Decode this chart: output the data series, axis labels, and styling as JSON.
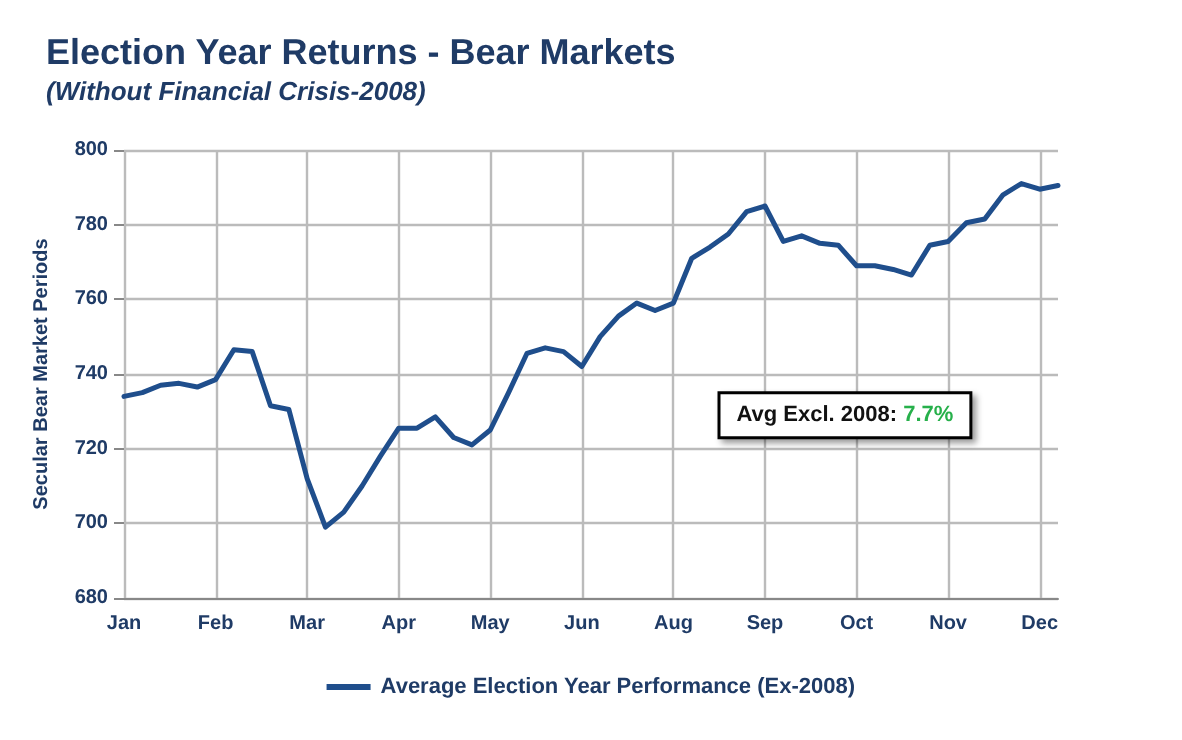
{
  "chart_data": {
    "type": "line",
    "title": "Election Year Returns - Bear Markets",
    "subtitle": "(Without Financial Crisis-2008)",
    "ylabel": "Secular Bear Market Periods",
    "categories": [
      "Jan",
      null,
      null,
      null,
      null,
      "Feb",
      null,
      null,
      null,
      null,
      "Mar",
      null,
      null,
      null,
      null,
      "Apr",
      null,
      null,
      null,
      null,
      "May",
      null,
      null,
      null,
      null,
      "Jun",
      null,
      null,
      null,
      null,
      "Aug",
      null,
      null,
      null,
      null,
      "Sep",
      null,
      null,
      null,
      null,
      "Oct",
      null,
      null,
      null,
      null,
      "Nov",
      null,
      null,
      null,
      null,
      "Dec",
      null
    ],
    "series": [
      {
        "name": "Average Election Year Performance (Ex-2008)",
        "color": "#1f4e8c",
        "values": [
          734,
          735,
          737,
          737.5,
          736.5,
          738.5,
          746.5,
          746,
          731.5,
          730.5,
          712,
          699,
          703,
          710,
          718,
          725.5,
          725.5,
          728.5,
          723,
          721,
          725,
          735,
          745.5,
          747,
          746,
          742,
          750,
          755.5,
          759,
          757,
          759,
          771,
          774,
          777.5,
          783.5,
          785,
          775.5,
          777,
          775,
          774.5,
          769,
          769,
          768,
          766.5,
          774.5,
          775.5,
          780.5,
          781.5,
          788,
          791,
          789.5,
          790.5
        ]
      }
    ],
    "ylim": [
      680,
      800
    ],
    "yticks": [
      680,
      700,
      720,
      740,
      760,
      780,
      800
    ],
    "grid": true,
    "legend": "bottom",
    "marker": "none",
    "line_style": "solid",
    "annotations": [
      "Avg Excl. 2008: 7.7%"
    ]
  }
}
